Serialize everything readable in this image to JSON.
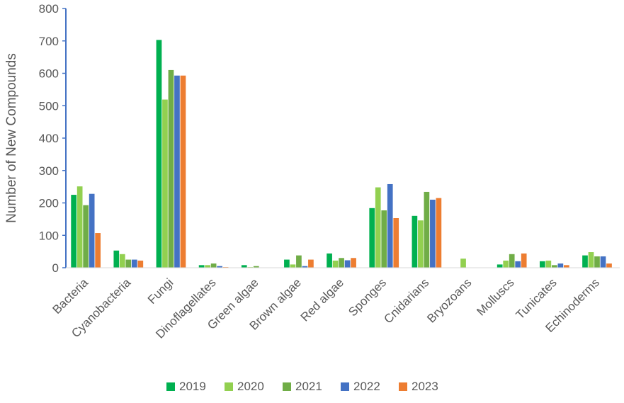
{
  "chart_data": {
    "type": "bar",
    "title": "",
    "xlabel": "",
    "ylabel": "Number of New Compounds",
    "ylim": [
      0,
      800
    ],
    "yticks": [
      0,
      100,
      200,
      300,
      400,
      500,
      600,
      700,
      800
    ],
    "grid": false,
    "legend_position": "bottom",
    "categories": [
      "Bacteria",
      "Cyanobacteria",
      "Fungi",
      "Dinoflagellates",
      "Green algae",
      "Brown algae",
      "Red algae",
      "Sponges",
      "Cnidarians",
      "Bryozoans",
      "Molluscs",
      "Tunicates",
      "Echinoderms"
    ],
    "series": [
      {
        "name": "2019",
        "color": "#00b050",
        "values": [
          225,
          53,
          703,
          8,
          8,
          25,
          44,
          184,
          160,
          0,
          10,
          20,
          38
        ]
      },
      {
        "name": "2020",
        "color": "#92d050",
        "values": [
          251,
          42,
          519,
          8,
          2,
          10,
          22,
          248,
          146,
          28,
          22,
          22,
          48
        ]
      },
      {
        "name": "2021",
        "color": "#70ad47",
        "values": [
          193,
          25,
          610,
          13,
          5,
          38,
          30,
          177,
          234,
          0,
          42,
          8,
          35
        ]
      },
      {
        "name": "2022",
        "color": "#4472c4",
        "values": [
          228,
          25,
          593,
          5,
          1,
          5,
          23,
          258,
          210,
          0,
          20,
          13,
          35
        ]
      },
      {
        "name": "2023",
        "color": "#ed7d31",
        "values": [
          107,
          22,
          593,
          2,
          1,
          25,
          30,
          153,
          215,
          0,
          44,
          8,
          13
        ]
      }
    ]
  }
}
